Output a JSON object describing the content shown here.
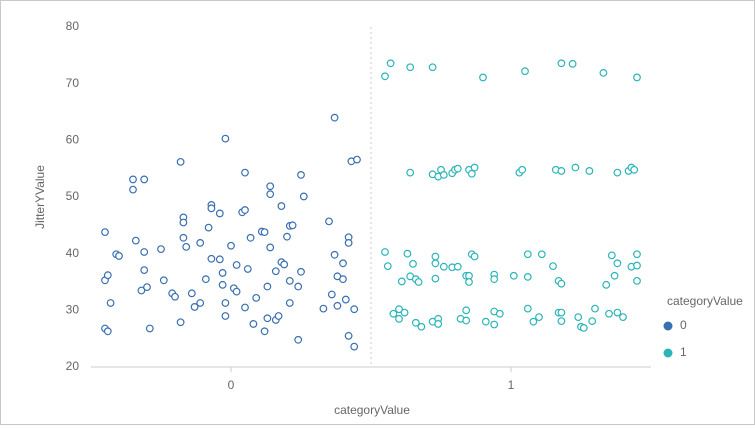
{
  "chart_data": {
    "type": "scatter",
    "xlabel": "categoryValue",
    "ylabel": "JitterYValue",
    "legend_title": "categoryValue",
    "legend": "right",
    "xlim": [
      -0.5,
      1.5
    ],
    "xticks": [
      0,
      1
    ],
    "ylim": [
      20,
      80
    ],
    "yticks": [
      20,
      30,
      40,
      50,
      60,
      70,
      80
    ],
    "series": [
      {
        "name": "0",
        "color": "#3a6fb0",
        "x": [
          -0.45,
          -0.45,
          -0.44,
          -0.43,
          -0.45,
          -0.44,
          -0.41,
          -0.4,
          -0.35,
          -0.35,
          -0.31,
          -0.34,
          -0.31,
          -0.31,
          -0.32,
          -0.3,
          -0.29,
          -0.25,
          -0.24,
          -0.21,
          -0.2,
          -0.18,
          -0.17,
          -0.17,
          -0.17,
          -0.16,
          -0.18,
          -0.14,
          -0.13,
          -0.11,
          -0.11,
          -0.09,
          -0.08,
          -0.07,
          -0.07,
          -0.07,
          -0.04,
          -0.04,
          -0.03,
          -0.03,
          -0.02,
          -0.02,
          -0.02,
          0.0,
          0.01,
          0.02,
          0.02,
          0.04,
          0.05,
          0.05,
          0.05,
          0.06,
          0.07,
          0.08,
          0.09,
          0.11,
          0.12,
          0.12,
          0.13,
          0.13,
          0.14,
          0.14,
          0.14,
          0.16,
          0.16,
          0.17,
          0.18,
          0.18,
          0.19,
          0.2,
          0.21,
          0.21,
          0.21,
          0.22,
          0.24,
          0.24,
          0.25,
          0.25,
          0.26,
          0.33,
          0.35,
          0.36,
          0.37,
          0.37,
          0.38,
          0.38,
          0.4,
          0.4,
          0.41,
          0.42,
          0.42,
          0.42,
          0.43,
          0.44,
          0.45,
          0.44
        ],
        "values": [
          43.8,
          35.3,
          36.2,
          31.3,
          26.8,
          26.3,
          39.9,
          39.6,
          53.1,
          51.3,
          53.1,
          42.3,
          40.3,
          37.1,
          33.5,
          34.1,
          26.8,
          40.8,
          35.3,
          33.0,
          32.4,
          56.2,
          46.4,
          45.5,
          42.8,
          41.2,
          27.9,
          33.0,
          30.6,
          41.9,
          31.3,
          35.5,
          44.6,
          48.6,
          48.0,
          39.1,
          47.1,
          39.0,
          36.6,
          34.5,
          31.3,
          29.0,
          60.3,
          41.4,
          33.9,
          38.0,
          33.3,
          47.3,
          47.7,
          54.3,
          30.5,
          37.3,
          42.8,
          27.6,
          32.2,
          43.9,
          43.8,
          26.3,
          28.6,
          34.2,
          41.1,
          51.9,
          50.5,
          36.9,
          28.3,
          29.0,
          48.4,
          38.5,
          38.1,
          43.0,
          44.9,
          35.2,
          31.3,
          45.0,
          24.8,
          34.2,
          36.8,
          53.9,
          50.1,
          30.3,
          45.7,
          32.8,
          64.0,
          39.8,
          30.8,
          36.0,
          38.3,
          35.5,
          31.9,
          42.9,
          41.9,
          25.5,
          56.3,
          23.6,
          56.6,
          30.2
        ]
      },
      {
        "name": "1",
        "color": "#2bb5b8",
        "x": [
          0.55,
          0.57,
          0.64,
          0.72,
          0.9,
          1.05,
          1.18,
          1.22,
          1.33,
          1.45,
          0.64,
          0.72,
          0.74,
          0.75,
          0.76,
          0.79,
          0.8,
          0.81,
          0.85,
          0.86,
          0.87,
          1.03,
          1.04,
          1.16,
          1.18,
          1.23,
          1.28,
          1.38,
          1.42,
          1.43,
          1.44,
          0.55,
          0.56,
          0.61,
          0.63,
          0.64,
          0.65,
          0.66,
          0.67,
          0.73,
          0.73,
          0.73,
          0.76,
          0.79,
          0.81,
          0.84,
          0.85,
          0.85,
          0.86,
          0.87,
          0.94,
          0.94,
          1.01,
          1.06,
          1.06,
          1.11,
          1.15,
          1.17,
          1.18,
          1.34,
          1.36,
          1.37,
          1.38,
          1.43,
          1.45,
          1.45,
          1.45,
          0.58,
          0.6,
          0.6,
          0.62,
          0.66,
          0.68,
          0.72,
          0.74,
          0.74,
          0.82,
          0.84,
          0.84,
          0.91,
          0.94,
          0.94,
          0.96,
          1.06,
          1.08,
          1.1,
          1.17,
          1.18,
          1.18,
          1.24,
          1.25,
          1.26,
          1.29,
          1.3,
          1.35,
          1.38,
          1.4
        ],
        "values": [
          71.3,
          73.6,
          72.9,
          72.9,
          71.1,
          72.2,
          73.6,
          73.5,
          71.9,
          71.1,
          54.3,
          54.0,
          53.6,
          54.8,
          53.9,
          54.2,
          54.8,
          55.0,
          54.8,
          54.1,
          55.2,
          54.3,
          54.8,
          54.8,
          54.6,
          55.2,
          54.6,
          54.3,
          54.6,
          55.2,
          54.8,
          40.3,
          37.8,
          35.1,
          40.0,
          36.0,
          38.2,
          35.5,
          35.0,
          35.6,
          39.5,
          38.3,
          37.7,
          37.6,
          37.7,
          36.1,
          36.1,
          35.0,
          39.9,
          39.5,
          36.3,
          35.5,
          36.1,
          35.9,
          39.9,
          39.9,
          37.8,
          35.2,
          34.7,
          34.5,
          39.7,
          36.1,
          38.3,
          37.7,
          35.2,
          39.9,
          37.9,
          29.4,
          30.2,
          28.5,
          29.6,
          27.8,
          27.1,
          28.0,
          28.5,
          27.6,
          28.5,
          28.2,
          30.0,
          28.0,
          29.8,
          27.5,
          29.4,
          30.3,
          28.0,
          28.8,
          29.6,
          29.6,
          28.1,
          28.8,
          27.1,
          26.9,
          28.1,
          30.3,
          29.4,
          29.6,
          28.8
        ]
      }
    ]
  }
}
